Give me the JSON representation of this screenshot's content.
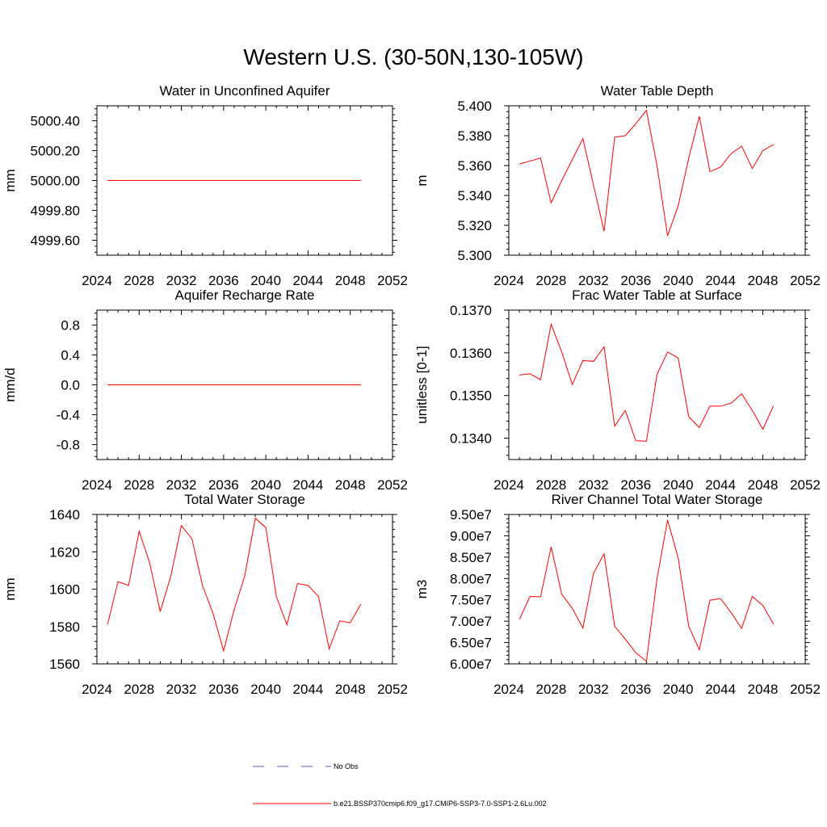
{
  "page": {
    "title": "Western U.S. (30-50N,130-105W)"
  },
  "legend": {
    "obs_label": "No Obs",
    "obs_color": "#5a5aaa",
    "model_label": "b.e21.BSSP370cmip6.f09_g17.CMIP6-SSP3-7.0-SSP1-2.6Lu.002",
    "model_color": "#ff0000"
  },
  "chart_data": [
    {
      "type": "line",
      "title": "Water in Unconfined Aquifer",
      "ylabel": "mm",
      "xlim": [
        2024,
        2052
      ],
      "xticks": [
        2024,
        2028,
        2032,
        2036,
        2040,
        2044,
        2048,
        2052
      ],
      "ylim": [
        4999.5,
        5000.5
      ],
      "yticks": [
        4999.6,
        4999.8,
        5000.0,
        5000.2,
        5000.4
      ],
      "ydecimals": 2,
      "x": [
        2025,
        2026,
        2027,
        2028,
        2029,
        2030,
        2031,
        2032,
        2033,
        2034,
        2035,
        2036,
        2037,
        2038,
        2039,
        2040,
        2041,
        2042,
        2043,
        2044,
        2045,
        2046,
        2047,
        2048,
        2049
      ],
      "series": [
        {
          "values": [
            5000,
            5000,
            5000,
            5000,
            5000,
            5000,
            5000,
            5000,
            5000,
            5000,
            5000,
            5000,
            5000,
            5000,
            5000,
            5000,
            5000,
            5000,
            5000,
            5000,
            5000,
            5000,
            5000,
            5000,
            5000
          ]
        }
      ]
    },
    {
      "type": "line",
      "title": "Water Table Depth",
      "ylabel": "m",
      "xlim": [
        2024,
        2052
      ],
      "xticks": [
        2024,
        2028,
        2032,
        2036,
        2040,
        2044,
        2048,
        2052
      ],
      "ylim": [
        5.3,
        5.4
      ],
      "yticks": [
        5.3,
        5.32,
        5.34,
        5.36,
        5.38,
        5.4
      ],
      "ydecimals": 3,
      "x": [
        2025,
        2026,
        2027,
        2028,
        2029,
        2030,
        2031,
        2032,
        2033,
        2034,
        2035,
        2036,
        2037,
        2038,
        2039,
        2040,
        2041,
        2042,
        2043,
        2044,
        2045,
        2046,
        2047,
        2048,
        2049
      ],
      "series": [
        {
          "values": [
            5.361,
            5.363,
            5.365,
            5.335,
            5.35,
            5.364,
            5.378,
            5.347,
            5.316,
            5.379,
            5.38,
            5.388,
            5.397,
            5.36,
            5.313,
            5.333,
            5.365,
            5.393,
            5.356,
            5.359,
            5.368,
            5.373,
            5.358,
            5.37,
            5.374
          ]
        }
      ]
    },
    {
      "type": "line",
      "title": "Aquifer Recharge Rate",
      "ylabel": "mm/d",
      "xlim": [
        2024,
        2052
      ],
      "xticks": [
        2024,
        2028,
        2032,
        2036,
        2040,
        2044,
        2048,
        2052
      ],
      "ylim": [
        -1.0,
        1.0
      ],
      "yticks": [
        -0.8,
        -0.4,
        0.0,
        0.4,
        0.8
      ],
      "ydecimals": 1,
      "x": [
        2025,
        2026,
        2027,
        2028,
        2029,
        2030,
        2031,
        2032,
        2033,
        2034,
        2035,
        2036,
        2037,
        2038,
        2039,
        2040,
        2041,
        2042,
        2043,
        2044,
        2045,
        2046,
        2047,
        2048,
        2049
      ],
      "series": [
        {
          "values": [
            0,
            0,
            0,
            0,
            0,
            0,
            0,
            0,
            0,
            0,
            0,
            0,
            0,
            0,
            0,
            0,
            0,
            0,
            0,
            0,
            0,
            0,
            0,
            0,
            0
          ]
        }
      ]
    },
    {
      "type": "line",
      "title": "Frac Water Table at Surface",
      "ylabel": "unitless [0-1]",
      "xlim": [
        2024,
        2052
      ],
      "xticks": [
        2024,
        2028,
        2032,
        2036,
        2040,
        2044,
        2048,
        2052
      ],
      "ylim": [
        0.1335,
        0.137
      ],
      "yticks": [
        0.134,
        0.135,
        0.136,
        0.137
      ],
      "ydecimals": 4,
      "x": [
        2025,
        2026,
        2027,
        2028,
        2029,
        2030,
        2031,
        2032,
        2033,
        2034,
        2035,
        2036,
        2037,
        2038,
        2039,
        2040,
        2041,
        2042,
        2043,
        2044,
        2045,
        2046,
        2047,
        2048,
        2049
      ],
      "series": [
        {
          "values": [
            0.13548,
            0.13551,
            0.13537,
            0.13667,
            0.13602,
            0.13526,
            0.13582,
            0.1358,
            0.13614,
            0.13428,
            0.13465,
            0.13394,
            0.13393,
            0.13549,
            0.13602,
            0.13588,
            0.1345,
            0.13425,
            0.13475,
            0.13475,
            0.13482,
            0.13504,
            0.13465,
            0.13421,
            0.13476
          ]
        }
      ]
    },
    {
      "type": "line",
      "title": "Total Water Storage",
      "ylabel": "mm",
      "xlim": [
        2024,
        2052
      ],
      "xticks": [
        2024,
        2028,
        2032,
        2036,
        2040,
        2044,
        2048,
        2052
      ],
      "ylim": [
        1560,
        1640
      ],
      "yticks": [
        1560,
        1580,
        1600,
        1620,
        1640
      ],
      "ydecimals": 0,
      "x": [
        2025,
        2026,
        2027,
        2028,
        2029,
        2030,
        2031,
        2032,
        2033,
        2034,
        2035,
        2036,
        2037,
        2038,
        2039,
        2040,
        2041,
        2042,
        2043,
        2044,
        2045,
        2046,
        2047,
        2048,
        2049
      ],
      "series": [
        {
          "values": [
            1581,
            1604,
            1602,
            1631,
            1614,
            1588,
            1607,
            1634,
            1627,
            1602,
            1587,
            1567,
            1589,
            1607,
            1638,
            1633,
            1596,
            1581,
            1603,
            1602,
            1596,
            1568,
            1583,
            1582,
            1592
          ]
        }
      ]
    },
    {
      "type": "line",
      "title": "River Channel Total Water Storage",
      "ylabel": "m3",
      "xlim": [
        2024,
        2052
      ],
      "xticks": [
        2024,
        2028,
        2032,
        2036,
        2040,
        2044,
        2048,
        2052
      ],
      "ylim": [
        60000000,
        95000000
      ],
      "yticks": [
        60000000,
        65000000,
        70000000,
        75000000,
        80000000,
        85000000,
        90000000,
        95000000
      ],
      "ydecimals": -1,
      "x": [
        2025,
        2026,
        2027,
        2028,
        2029,
        2030,
        2031,
        2032,
        2033,
        2034,
        2035,
        2036,
        2037,
        2038,
        2039,
        2040,
        2041,
        2042,
        2043,
        2044,
        2045,
        2046,
        2047,
        2048,
        2049
      ],
      "series": [
        {
          "values": [
            70400000,
            75800000,
            75700000,
            87400000,
            76300000,
            73000000,
            68400000,
            81200000,
            85800000,
            68800000,
            65800000,
            62600000,
            60600000,
            79900000,
            93700000,
            84800000,
            68800000,
            63300000,
            74900000,
            75300000,
            72000000,
            68300000,
            75800000,
            73700000,
            69300000
          ]
        }
      ]
    }
  ]
}
